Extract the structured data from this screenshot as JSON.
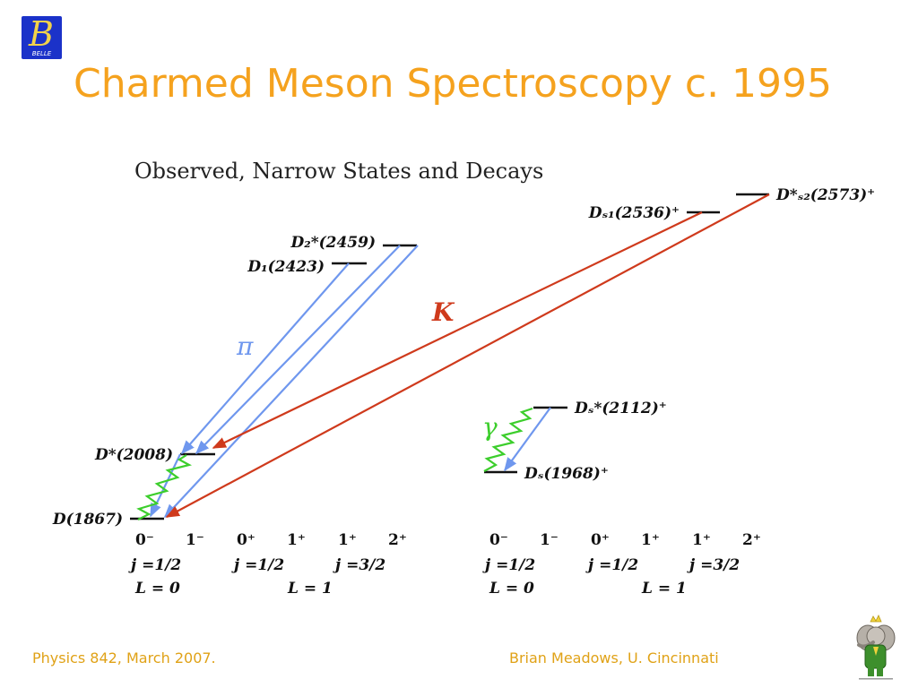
{
  "logo": {
    "glyph": "B",
    "label": "BELLE"
  },
  "title": "Charmed Meson Spectroscopy c. 1995",
  "diagram": {
    "heading": "Observed, Narrow States and Decays",
    "levels": {
      "d1867": "D(1867)",
      "dstar2008": "D*(2008)",
      "d1_2423": "D₁(2423)",
      "d2star2459": "D₂*(2459)",
      "ds1_2536": "Dₛ₁(2536)⁺",
      "ds2star2573": "D*ₛ₂(2573)⁺",
      "dsstar2112": "Dₛ*(2112)⁺",
      "ds1968": "Dₛ(1968)⁺"
    },
    "transitions": {
      "pi": "π",
      "kaon": "K",
      "gamma": "γ"
    },
    "axes": {
      "jp_row": [
        "0⁻",
        "1⁻",
        "0⁺",
        "1⁺",
        "1⁺",
        "2⁺"
      ],
      "j_row": [
        "j =1/2",
        "j =1/2",
        "j =3/2"
      ],
      "l_row": [
        "L = 0",
        "L = 1"
      ]
    },
    "colors": {
      "pion": "#6f97ee",
      "kaon": "#cf3a1c",
      "photon": "#3cce2c",
      "heading": "#222222"
    }
  },
  "footer": {
    "left": "Physics 842, March 2007.",
    "right": "Brian Meadows, U. Cincinnati"
  },
  "mascot": {
    "name": "elephant-mascot-icon"
  }
}
